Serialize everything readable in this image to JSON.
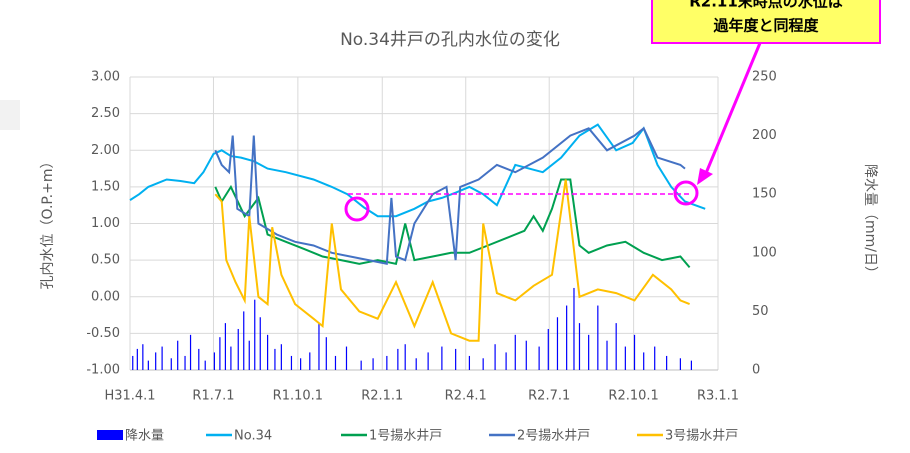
{
  "chart_data": {
    "type": "line",
    "title": "No.34井戸の孔内水位の変化",
    "y_label": "孔内水位（O.P.+m）",
    "y2_label": "降水量（mm/日）",
    "annotation": [
      "R2.11末時点の水位は",
      "過年度と同程度"
    ],
    "xlim": [
      0,
      641
    ],
    "xticks": [
      {
        "value": 0,
        "label": "H31.4.1"
      },
      {
        "value": 91,
        "label": "R1.7.1"
      },
      {
        "value": 183,
        "label": "R1.10.1"
      },
      {
        "value": 275,
        "label": "R2.1.1"
      },
      {
        "value": 366,
        "label": "R2.4.1"
      },
      {
        "value": 457,
        "label": "R2.7.1"
      },
      {
        "value": 549,
        "label": "R2.10.1"
      },
      {
        "value": 641,
        "label": "R3.1.1"
      }
    ],
    "ylim": [
      -1,
      3
    ],
    "yticks": [
      {
        "value": -1,
        "label": "-1.00"
      },
      {
        "value": -0.5,
        "label": "-0.50"
      },
      {
        "value": 0,
        "label": "0.00"
      },
      {
        "value": 0.5,
        "label": "0.50"
      },
      {
        "value": 1,
        "label": "1.00"
      },
      {
        "value": 1.5,
        "label": "1.50"
      },
      {
        "value": 2,
        "label": "2.00"
      },
      {
        "value": 2.5,
        "label": "2.50"
      },
      {
        "value": 3,
        "label": "3.00"
      }
    ],
    "y2lim": [
      0,
      250
    ],
    "y2ticks": [
      0,
      50,
      100,
      150,
      200,
      250
    ],
    "grid": true,
    "series": [
      {
        "name": "降水量",
        "type": "bar",
        "axis": "y2",
        "color": "#0000ff",
        "x": [
          3,
          8,
          14,
          20,
          28,
          35,
          45,
          52,
          60,
          66,
          75,
          82,
          92,
          98,
          104,
          110,
          118,
          124,
          130,
          136,
          142,
          150,
          158,
          165,
          176,
          186,
          196,
          206,
          214,
          224,
          236,
          252,
          265,
          280,
          292,
          300,
          312,
          325,
          340,
          355,
          370,
          385,
          398,
          410,
          420,
          432,
          446,
          456,
          466,
          476,
          484,
          490,
          500,
          510,
          520,
          530,
          540,
          550,
          560,
          572,
          585,
          600,
          612
        ],
        "values": [
          12,
          18,
          22,
          8,
          15,
          20,
          10,
          25,
          12,
          30,
          18,
          8,
          15,
          28,
          40,
          20,
          35,
          50,
          25,
          60,
          45,
          30,
          18,
          22,
          12,
          10,
          15,
          40,
          28,
          12,
          20,
          8,
          10,
          12,
          18,
          22,
          10,
          15,
          20,
          18,
          12,
          10,
          22,
          15,
          30,
          25,
          20,
          35,
          45,
          55,
          70,
          40,
          30,
          55,
          25,
          40,
          20,
          30,
          15,
          20,
          12,
          10,
          8
        ]
      },
      {
        "name": "No.34",
        "color": "#00b0f0",
        "x": [
          0,
          10,
          20,
          30,
          40,
          55,
          70,
          80,
          91,
          100,
          110,
          121,
          135,
          150,
          170,
          200,
          220,
          237,
          255,
          270,
          290,
          310,
          325,
          340,
          355,
          370,
          385,
          400,
          420,
          450,
          470,
          490,
          510,
          530,
          548,
          560,
          575,
          590,
          605,
          627
        ],
        "values": [
          1.32,
          1.4,
          1.5,
          1.55,
          1.6,
          1.58,
          1.55,
          1.7,
          1.95,
          2.0,
          1.92,
          1.9,
          1.85,
          1.75,
          1.7,
          1.6,
          1.5,
          1.4,
          1.22,
          1.1,
          1.1,
          1.2,
          1.3,
          1.35,
          1.42,
          1.5,
          1.4,
          1.25,
          1.8,
          1.7,
          1.9,
          2.2,
          2.35,
          2.0,
          2.1,
          2.3,
          1.8,
          1.5,
          1.3,
          1.2
        ]
      },
      {
        "name": "1号揚水井戸",
        "color": "#00a050",
        "x": [
          93,
          100,
          110,
          125,
          140,
          150,
          170,
          190,
          210,
          230,
          250,
          270,
          290,
          300,
          310,
          330,
          350,
          370,
          390,
          410,
          430,
          440,
          450,
          460,
          470,
          480,
          490,
          500,
          520,
          540,
          560,
          580,
          600,
          610
        ],
        "values": [
          1.5,
          1.3,
          1.5,
          1.1,
          1.35,
          0.85,
          0.75,
          0.65,
          0.55,
          0.5,
          0.45,
          0.5,
          0.45,
          1.0,
          0.5,
          0.55,
          0.6,
          0.6,
          0.7,
          0.8,
          0.9,
          1.1,
          0.9,
          1.2,
          1.6,
          1.6,
          0.7,
          0.6,
          0.7,
          0.75,
          0.6,
          0.5,
          0.55,
          0.4
        ]
      },
      {
        "name": "2号揚水井戸",
        "color": "#4472c4",
        "x": [
          93,
          100,
          108,
          112,
          117,
          130,
          135,
          140,
          160,
          180,
          200,
          220,
          240,
          260,
          280,
          285,
          290,
          300,
          310,
          330,
          345,
          355,
          360,
          380,
          400,
          420,
          450,
          480,
          500,
          520,
          550,
          560,
          575,
          600,
          605
        ],
        "values": [
          2.0,
          1.8,
          1.7,
          2.2,
          1.2,
          1.1,
          2.2,
          1.0,
          0.85,
          0.75,
          0.7,
          0.6,
          0.55,
          0.5,
          0.45,
          1.35,
          0.55,
          0.5,
          1.0,
          1.4,
          1.5,
          0.5,
          1.5,
          1.6,
          1.8,
          1.7,
          1.9,
          2.2,
          2.3,
          2.0,
          2.2,
          2.3,
          1.9,
          1.8,
          1.75
        ]
      },
      {
        "name": "3号揚水井戸",
        "color": "#ffc000",
        "x": [
          93,
          100,
          105,
          115,
          125,
          130,
          140,
          150,
          155,
          165,
          180,
          200,
          210,
          220,
          230,
          250,
          270,
          290,
          310,
          330,
          350,
          370,
          380,
          385,
          400,
          420,
          440,
          460,
          475,
          490,
          510,
          530,
          550,
          570,
          590,
          600,
          610
        ],
        "values": [
          1.4,
          1.3,
          0.5,
          0.2,
          -0.05,
          1.1,
          0.0,
          -0.1,
          0.95,
          0.3,
          -0.1,
          -0.3,
          -0.4,
          1.0,
          0.1,
          -0.2,
          -0.3,
          0.2,
          -0.4,
          0.2,
          -0.5,
          -0.6,
          -0.6,
          1.0,
          0.05,
          -0.05,
          0.15,
          0.3,
          1.6,
          0.0,
          0.1,
          0.05,
          -0.05,
          0.3,
          0.1,
          -0.05,
          -0.1
        ]
      }
    ]
  }
}
